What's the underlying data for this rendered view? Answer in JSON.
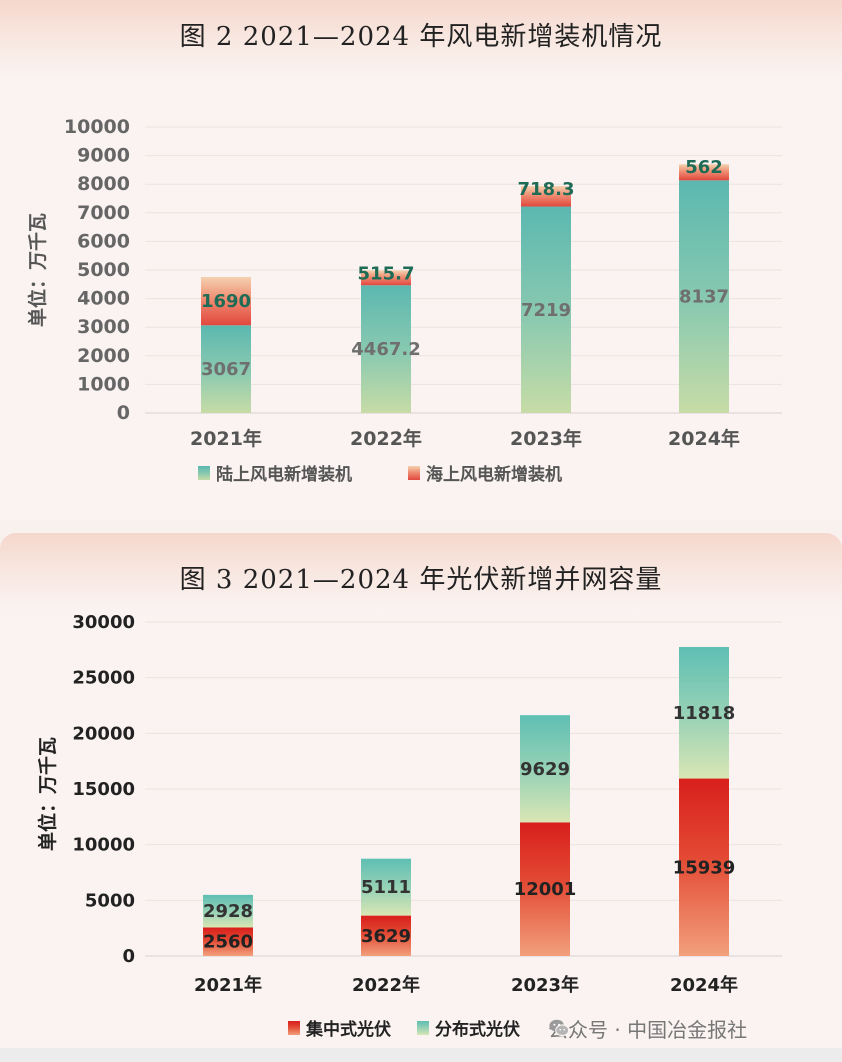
{
  "chart_data": [
    {
      "type": "bar",
      "stacked": true,
      "title": "图 2 2021—2024 年风电新增装机情况",
      "ylabel": "单位：万千瓦",
      "xlabel": "",
      "categories": [
        "2021年",
        "2022年",
        "2023年",
        "2024年"
      ],
      "ylim": [
        0,
        10000
      ],
      "yticks": [
        "0",
        "1000",
        "2000",
        "3000",
        "4000",
        "5000",
        "6000",
        "7000",
        "8000",
        "9000",
        "10000"
      ],
      "grid": true,
      "legend_position": "bottom",
      "series": [
        {
          "name": "陆上风电新增装机",
          "values": [
            3067,
            4467.2,
            7219,
            8137
          ],
          "labels": [
            "3067",
            "4467.2",
            "7219",
            "8137"
          ],
          "color": "#6cbfb2"
        },
        {
          "name": "海上风电新增装机",
          "values": [
            1690,
            515.7,
            718.3,
            562
          ],
          "labels": [
            "1690",
            "515.7",
            "718.3",
            "562"
          ],
          "color": "#e8574a"
        }
      ]
    },
    {
      "type": "bar",
      "stacked": true,
      "title": "图 3 2021—2024 年光伏新增并网容量",
      "ylabel": "单位：万千瓦",
      "xlabel": "",
      "categories": [
        "2021年",
        "2022年",
        "2023年",
        "2024年"
      ],
      "ylim": [
        0,
        30000
      ],
      "yticks": [
        "0",
        "5000",
        "10000",
        "15000",
        "20000",
        "25000",
        "30000"
      ],
      "grid": true,
      "legend_position": "bottom",
      "series": [
        {
          "name": "集中式光伏",
          "values": [
            2560,
            3629,
            12001,
            15939
          ],
          "labels": [
            "2560",
            "3629",
            "12001",
            "15939"
          ],
          "color": "#d9281f"
        },
        {
          "name": "分布式光伏",
          "values": [
            2928,
            5111,
            9629,
            11818
          ],
          "labels": [
            "2928",
            "5111",
            "9629",
            "11818"
          ],
          "color": "#6fc4b4"
        }
      ]
    }
  ],
  "watermark": {
    "text": "公众号 · 中国冶金报社",
    "icon": "wechat-icon"
  }
}
